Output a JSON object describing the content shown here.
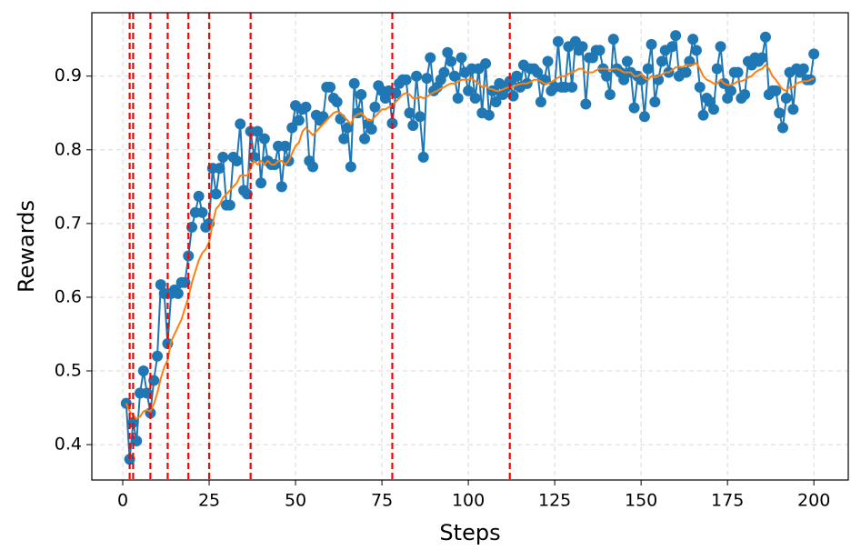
{
  "chart_data": {
    "type": "line",
    "xlabel": "Steps",
    "ylabel": "Rewards",
    "x": [
      1,
      2,
      3,
      4,
      5,
      6,
      7,
      8,
      9,
      10,
      11,
      12,
      13,
      14,
      15,
      16,
      17,
      18,
      19,
      20,
      21,
      22,
      23,
      24,
      25,
      26,
      27,
      28,
      29,
      30,
      31,
      32,
      33,
      34,
      35,
      36,
      37,
      38,
      39,
      40,
      41,
      42,
      43,
      44,
      45,
      46,
      47,
      48,
      49,
      50,
      51,
      52,
      53,
      54,
      55,
      56,
      57,
      58,
      59,
      60,
      61,
      62,
      63,
      64,
      65,
      66,
      67,
      68,
      69,
      70,
      71,
      72,
      73,
      74,
      75,
      76,
      77,
      78,
      79,
      80,
      81,
      82,
      83,
      84,
      85,
      86,
      87,
      88,
      89,
      90,
      91,
      92,
      93,
      94,
      95,
      96,
      97,
      98,
      99,
      100,
      101,
      102,
      103,
      104,
      105,
      106,
      107,
      108,
      109,
      110,
      111,
      112,
      113,
      114,
      115,
      116,
      117,
      118,
      119,
      120,
      121,
      122,
      123,
      124,
      125,
      126,
      127,
      128,
      129,
      130,
      131,
      132,
      133,
      134,
      135,
      136,
      137,
      138,
      139,
      140,
      141,
      142,
      143,
      144,
      145,
      146,
      147,
      148,
      149,
      150,
      151,
      152,
      153,
      154,
      155,
      156,
      157,
      158,
      159,
      160,
      161,
      162,
      163,
      164,
      165,
      166,
      167,
      168,
      169,
      170,
      171,
      172,
      173,
      174,
      175,
      176,
      177,
      178,
      179,
      180,
      181,
      182,
      183,
      184,
      185,
      186,
      187,
      188,
      189,
      190,
      191,
      192,
      193,
      194,
      195,
      196,
      197,
      198,
      199,
      200
    ],
    "series": [
      {
        "color": "#1f77b4",
        "markers": true,
        "values": [
          0.456,
          0.38,
          0.43,
          0.405,
          0.47,
          0.5,
          0.47,
          0.443,
          0.487,
          0.52,
          0.617,
          0.605,
          0.537,
          0.605,
          0.61,
          0.605,
          0.62,
          0.62,
          0.656,
          0.695,
          0.715,
          0.737,
          0.715,
          0.695,
          0.7,
          0.775,
          0.74,
          0.775,
          0.79,
          0.725,
          0.725,
          0.79,
          0.785,
          0.835,
          0.745,
          0.74,
          0.825,
          0.79,
          0.825,
          0.755,
          0.815,
          0.785,
          0.78,
          0.78,
          0.805,
          0.75,
          0.805,
          0.785,
          0.83,
          0.86,
          0.84,
          0.855,
          0.858,
          0.785,
          0.777,
          0.847,
          0.84,
          0.845,
          0.885,
          0.885,
          0.87,
          0.865,
          0.842,
          0.815,
          0.83,
          0.777,
          0.89,
          0.85,
          0.875,
          0.815,
          0.835,
          0.828,
          0.858,
          0.887,
          0.88,
          0.87,
          0.88,
          0.836,
          0.877,
          0.89,
          0.895,
          0.895,
          0.85,
          0.833,
          0.9,
          0.845,
          0.79,
          0.897,
          0.925,
          0.88,
          0.885,
          0.895,
          0.905,
          0.932,
          0.92,
          0.9,
          0.87,
          0.925,
          0.905,
          0.88,
          0.91,
          0.87,
          0.91,
          0.85,
          0.917,
          0.847,
          0.88,
          0.865,
          0.89,
          0.875,
          0.885,
          0.893,
          0.873,
          0.9,
          0.885,
          0.915,
          0.89,
          0.91,
          0.91,
          0.905,
          0.865,
          0.895,
          0.92,
          0.88,
          0.885,
          0.947,
          0.885,
          0.885,
          0.94,
          0.885,
          0.947,
          0.935,
          0.94,
          0.862,
          0.925,
          0.925,
          0.935,
          0.935,
          0.91,
          0.9,
          0.875,
          0.95,
          0.91,
          0.905,
          0.895,
          0.92,
          0.905,
          0.857,
          0.9,
          0.895,
          0.845,
          0.91,
          0.943,
          0.865,
          0.895,
          0.92,
          0.935,
          0.905,
          0.94,
          0.955,
          0.9,
          0.905,
          0.905,
          0.92,
          0.95,
          0.935,
          0.885,
          0.847,
          0.87,
          0.865,
          0.855,
          0.91,
          0.94,
          0.89,
          0.87,
          0.88,
          0.905,
          0.905,
          0.87,
          0.875,
          0.92,
          0.915,
          0.925,
          0.92,
          0.925,
          0.953,
          0.875,
          0.88,
          0.88,
          0.85,
          0.83,
          0.87,
          0.905,
          0.855,
          0.91,
          0.905,
          0.91,
          0.895,
          0.895,
          0.93
        ]
      },
      {
        "color": "#ff7f0e",
        "markers": false,
        "values": [
          0.456,
          0.445,
          0.44,
          0.435,
          0.438,
          0.445,
          0.447,
          0.445,
          0.455,
          0.47,
          0.49,
          0.505,
          0.515,
          0.54,
          0.55,
          0.56,
          0.57,
          0.585,
          0.6,
          0.62,
          0.635,
          0.65,
          0.66,
          0.665,
          0.675,
          0.7,
          0.72,
          0.725,
          0.735,
          0.74,
          0.745,
          0.75,
          0.755,
          0.765,
          0.765,
          0.765,
          0.775,
          0.785,
          0.78,
          0.785,
          0.78,
          0.785,
          0.78,
          0.78,
          0.785,
          0.785,
          0.78,
          0.785,
          0.795,
          0.805,
          0.81,
          0.825,
          0.83,
          0.825,
          0.82,
          0.825,
          0.83,
          0.835,
          0.84,
          0.845,
          0.85,
          0.852,
          0.85,
          0.845,
          0.84,
          0.835,
          0.845,
          0.848,
          0.85,
          0.845,
          0.84,
          0.84,
          0.845,
          0.85,
          0.855,
          0.855,
          0.858,
          0.86,
          0.865,
          0.87,
          0.875,
          0.877,
          0.875,
          0.87,
          0.87,
          0.872,
          0.87,
          0.872,
          0.875,
          0.878,
          0.88,
          0.883,
          0.885,
          0.888,
          0.89,
          0.89,
          0.892,
          0.895,
          0.895,
          0.895,
          0.897,
          0.893,
          0.89,
          0.885,
          0.887,
          0.883,
          0.882,
          0.88,
          0.88,
          0.882,
          0.884,
          0.885,
          0.885,
          0.888,
          0.889,
          0.89,
          0.89,
          0.892,
          0.895,
          0.895,
          0.893,
          0.89,
          0.89,
          0.892,
          0.895,
          0.898,
          0.9,
          0.9,
          0.903,
          0.905,
          0.907,
          0.91,
          0.91,
          0.905,
          0.905,
          0.905,
          0.908,
          0.91,
          0.91,
          0.91,
          0.908,
          0.91,
          0.91,
          0.908,
          0.905,
          0.905,
          0.905,
          0.9,
          0.9,
          0.903,
          0.897,
          0.895,
          0.9,
          0.898,
          0.9,
          0.902,
          0.905,
          0.905,
          0.908,
          0.912,
          0.913,
          0.912,
          0.915,
          0.915,
          0.915,
          0.918,
          0.91,
          0.9,
          0.895,
          0.893,
          0.89,
          0.89,
          0.895,
          0.89,
          0.888,
          0.888,
          0.89,
          0.893,
          0.893,
          0.895,
          0.898,
          0.9,
          0.905,
          0.908,
          0.91,
          0.915,
          0.91,
          0.9,
          0.895,
          0.888,
          0.882,
          0.88,
          0.885,
          0.885,
          0.89,
          0.892,
          0.893,
          0.893,
          0.895,
          0.897
        ]
      }
    ],
    "vlines": [
      2,
      3,
      8,
      13,
      19,
      25,
      37,
      78,
      112
    ],
    "vline_color": "#ff0000",
    "xlim": [
      -8.95,
      209.95
    ],
    "ylim": [
      0.352,
      0.986
    ],
    "xticks": [
      0,
      25,
      50,
      75,
      100,
      125,
      150,
      175,
      200
    ],
    "yticks": [
      0.4,
      0.5,
      0.6,
      0.7,
      0.8,
      0.9
    ],
    "grid": true
  }
}
